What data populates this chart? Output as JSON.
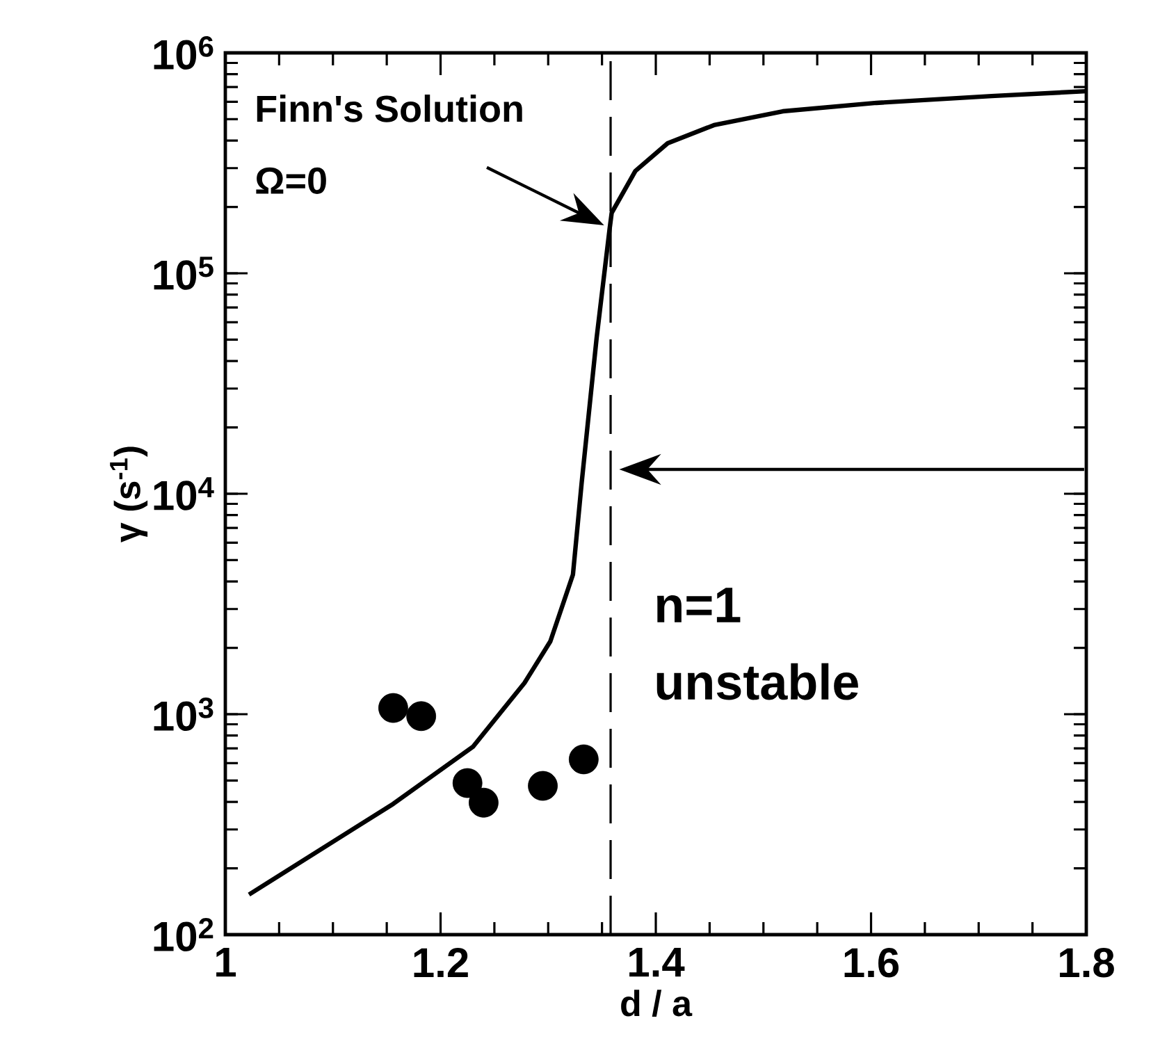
{
  "chart_data": {
    "type": "line",
    "xlabel": "d / a",
    "ylabel": "γ (s$^{-1}$)",
    "log": "y",
    "xlim": [
      1,
      1.8
    ],
    "xticks": [
      1,
      1.2,
      1.4,
      1.6,
      1.8
    ],
    "ylim": [
      100,
      1000000
    ],
    "yticks": [
      {
        "value": 100,
        "label": "10$^{2}$"
      },
      {
        "value": 1000,
        "label": "10$^{3}$"
      },
      {
        "value": 10000,
        "label": "10$^{4}$"
      },
      {
        "value": 100000,
        "label": "10$^{5}$"
      },
      {
        "value": 1000000,
        "label": "10$^{6}$"
      }
    ],
    "series": [
      {
        "color": "#000000",
        "line_style": "solid",
        "marker": "none",
        "x": [
          1.022,
          1.156,
          1.23,
          1.278,
          1.302,
          1.323,
          1.331,
          1.345,
          1.357,
          1.359,
          1.381,
          1.411,
          1.454,
          1.518,
          1.605,
          1.712,
          1.8
        ],
        "values": [
          152,
          392,
          711,
          1387,
          2140,
          4300,
          11070,
          50900,
          158000,
          188000,
          291000,
          389000,
          470000,
          543000,
          593000,
          637000,
          670000
        ]
      },
      {
        "type": "scatter",
        "color": "#000000",
        "marker": "circle",
        "x": [
          1.156,
          1.182,
          1.225,
          1.24,
          1.295,
          1.333
        ],
        "values": [
          1067,
          980,
          487,
          397,
          473,
          624
        ]
      }
    ],
    "ref_lines": [
      {
        "axis": "x",
        "value": 1.358,
        "line_style": "dashed",
        "color": "#000000"
      }
    ],
    "annotations": [
      "Finn's Solution",
      "Ω=0",
      "n=1",
      "unstable"
    ]
  }
}
